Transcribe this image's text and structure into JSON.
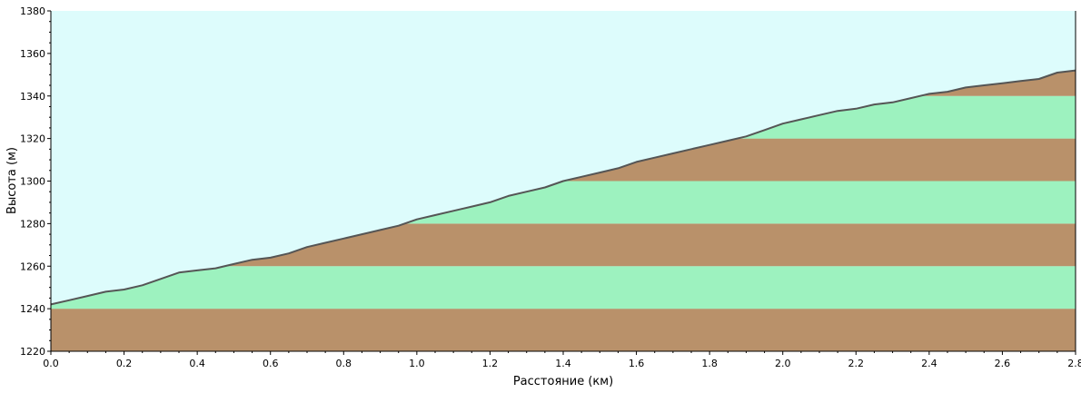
{
  "chart_data": {
    "type": "area",
    "title": "",
    "xlabel": "Расстояние  (км)",
    "ylabel": "Высота (м)",
    "xlim": [
      0.0,
      2.8
    ],
    "ylim": [
      1220,
      1380
    ],
    "x_ticks": [
      "0.0",
      "0.2",
      "0.4",
      "0.6",
      "0.8",
      "1.0",
      "1.2",
      "1.4",
      "1.6",
      "1.8",
      "2.0",
      "2.2",
      "2.4",
      "2.6",
      "2.8"
    ],
    "y_ticks": [
      "1220",
      "1240",
      "1260",
      "1280",
      "1300",
      "1320",
      "1340",
      "1360",
      "1380"
    ],
    "grid": false,
    "legend": "none",
    "band_size": 20,
    "colors": {
      "sky": "#DDFCFC",
      "band_brown": "#B9916A",
      "band_green": "#9DF2BF",
      "profile_line": "#555555",
      "axis": "#000000"
    },
    "series": [
      {
        "x": [
          0.0,
          0.05,
          0.1,
          0.15,
          0.2,
          0.25,
          0.3,
          0.35,
          0.4,
          0.45,
          0.5,
          0.55,
          0.6,
          0.65,
          0.7,
          0.75,
          0.8,
          0.85,
          0.9,
          0.95,
          1.0,
          1.05,
          1.1,
          1.15,
          1.2,
          1.25,
          1.3,
          1.35,
          1.4,
          1.45,
          1.5,
          1.55,
          1.6,
          1.65,
          1.7,
          1.75,
          1.8,
          1.85,
          1.9,
          1.95,
          2.0,
          2.05,
          2.1,
          2.15,
          2.2,
          2.25,
          2.3,
          2.35,
          2.4,
          2.45,
          2.5,
          2.55,
          2.6,
          2.65,
          2.7,
          2.75,
          2.8
        ],
        "y": [
          1242,
          1244,
          1246,
          1248,
          1249,
          1251,
          1254,
          1257,
          1258,
          1259,
          1261,
          1263,
          1264,
          1266,
          1269,
          1271,
          1273,
          1275,
          1277,
          1279,
          1282,
          1284,
          1286,
          1288,
          1290,
          1293,
          1295,
          1297,
          1300,
          1302,
          1304,
          1306,
          1309,
          1311,
          1313,
          1315,
          1317,
          1319,
          1321,
          1324,
          1327,
          1329,
          1331,
          1333,
          1334,
          1336,
          1337,
          1339,
          1341,
          1342,
          1344,
          1345,
          1346,
          1347,
          1348,
          1351,
          1352
        ]
      }
    ]
  }
}
